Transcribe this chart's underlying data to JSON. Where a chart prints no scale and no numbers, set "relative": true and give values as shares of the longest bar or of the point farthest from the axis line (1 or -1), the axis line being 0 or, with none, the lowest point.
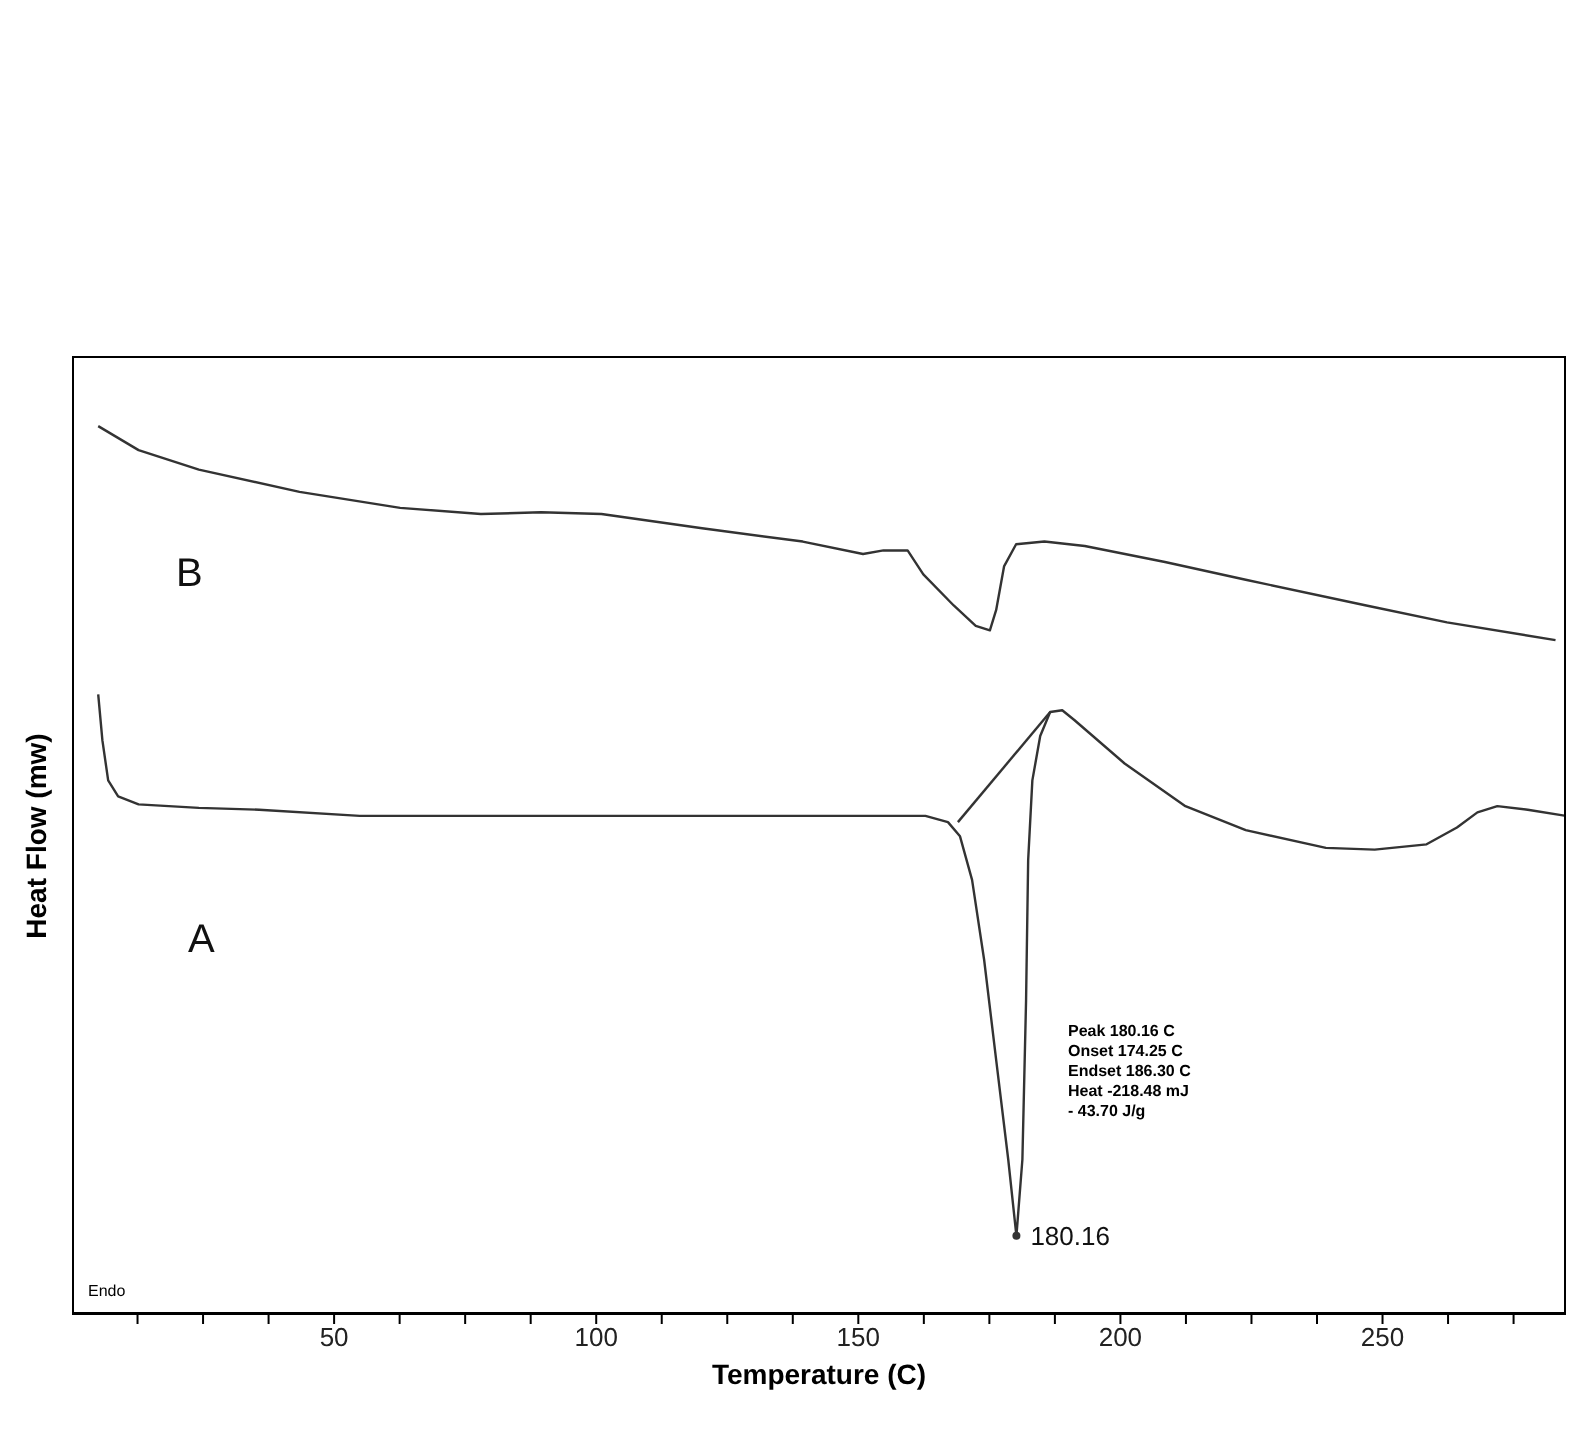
{
  "chart_data": {
    "type": "line",
    "xlabel": "Temperature (C)",
    "ylabel": "Heat Flow (mw)",
    "relative": true,
    "xlim": [
      0,
      285
    ],
    "xticks": [
      {
        "value": 12.5,
        "label": null
      },
      {
        "value": 25,
        "label": null
      },
      {
        "value": 37.5,
        "label": null
      },
      50,
      {
        "value": 62.5,
        "label": null
      },
      {
        "value": 75,
        "label": null
      },
      {
        "value": 87.5,
        "label": null
      },
      100,
      {
        "value": 112.5,
        "label": null
      },
      {
        "value": 125,
        "label": null
      },
      {
        "value": 137.5,
        "label": null
      },
      150,
      {
        "value": 162.5,
        "label": null
      },
      {
        "value": 175,
        "label": null
      },
      {
        "value": 187.5,
        "label": null
      },
      200,
      {
        "value": 212.5,
        "label": null
      },
      {
        "value": 225,
        "label": null
      },
      {
        "value": 237.5,
        "label": null
      },
      250,
      {
        "value": 262.5,
        "label": null
      },
      {
        "value": 275,
        "label": null
      }
    ],
    "tick_labels": "x",
    "grid": false,
    "legend": false,
    "marker": "none",
    "line_style": "solid",
    "series": [
      {
        "name": "B",
        "color": "#333333",
        "x": [
          5.0,
          12.7,
          24.2,
          43.4,
          62.6,
          78.0,
          89.5,
          101.0,
          120.2,
          139.4,
          150.9,
          154.8,
          159.4,
          162.4,
          168.2,
          172.4,
          175.1,
          176.3,
          177.8,
          180.1,
          185.5,
          193.2,
          208.5,
          223.9,
          246.9,
          262.3,
          283.0
        ],
        "values": [
          1.0,
          0.973,
          0.951,
          0.926,
          0.908,
          0.901,
          0.903,
          0.901,
          0.885,
          0.87,
          0.856,
          0.86,
          0.86,
          0.833,
          0.798,
          0.775,
          0.77,
          0.793,
          0.842,
          0.867,
          0.87,
          0.865,
          0.847,
          0.827,
          0.798,
          0.779,
          0.759
        ]
      },
      {
        "name": "A",
        "color": "#333333",
        "x": [
          5.0,
          5.8,
          6.9,
          8.8,
          12.7,
          24.2,
          35.7,
          54.9,
          81.8,
          120.2,
          150.9,
          162.8,
          167.1,
          169.4,
          171.7,
          174.0,
          176.3,
          178.6,
          180.16,
          181.3,
          182.0,
          182.4,
          183.2,
          184.7,
          186.6,
          188.9,
          191.2,
          200.8,
          212.4,
          223.9,
          239.2,
          248.5,
          258.4,
          264.2,
          268.1,
          271.9,
          277.7,
          285.0
        ],
        "values": [
          0.698,
          0.646,
          0.601,
          0.583,
          0.574,
          0.57,
          0.568,
          0.561,
          0.561,
          0.561,
          0.561,
          0.561,
          0.554,
          0.538,
          0.489,
          0.399,
          0.286,
          0.174,
          0.088,
          0.174,
          0.353,
          0.511,
          0.601,
          0.651,
          0.678,
          0.68,
          0.669,
          0.62,
          0.572,
          0.545,
          0.525,
          0.523,
          0.529,
          0.548,
          0.565,
          0.572,
          0.568,
          0.561
        ]
      },
      {
        "type": "line",
        "color": "#333333",
        "x": [
          169.0,
          186.6
        ],
        "values": [
          0.554,
          0.678
        ]
      }
    ],
    "annotations": [
      "Endo",
      "Peak 180.16 C",
      "Onset 174.25 C",
      "Endset 186.30 C",
      "Heat -218.48 mJ",
      "- 43.70 J/g",
      {
        "text": "180.16",
        "x": 180.16,
        "y": 0.088
      }
    ]
  }
}
